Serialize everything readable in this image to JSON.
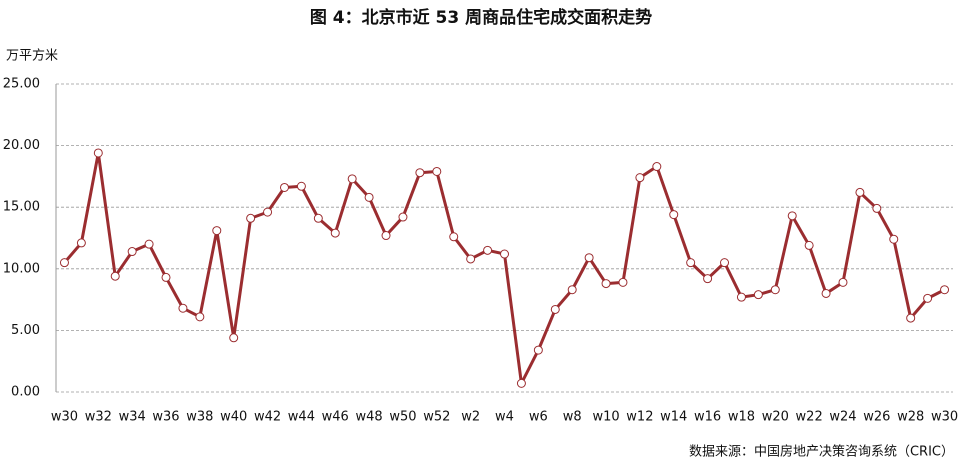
{
  "chart_data": {
    "type": "line",
    "title": "图 4：北京市近 53 周商品住宅成交面积走势",
    "y_axis_label": "万平方米",
    "source": "数据来源：中国房地产决策咨询系统（CRIC）",
    "categories": [
      "w30",
      null,
      "w32",
      null,
      "w34",
      null,
      "w36",
      null,
      "w38",
      null,
      "w40",
      null,
      "w42",
      null,
      "w44",
      null,
      "w46",
      null,
      "w48",
      null,
      "w50",
      null,
      "w52",
      null,
      "w2",
      null,
      "w4",
      null,
      "w6",
      null,
      "w8",
      null,
      "w10",
      null,
      "w12",
      null,
      "w14",
      null,
      "w16",
      null,
      "w18",
      null,
      "w20",
      null,
      "w22",
      null,
      "w24",
      null,
      "w26",
      null,
      "w28",
      null,
      "w30"
    ],
    "series": [
      {
        "color": "#9b2d30",
        "values": [
          10.5,
          12.1,
          19.4,
          9.4,
          11.4,
          12.0,
          9.3,
          6.8,
          6.1,
          13.1,
          4.4,
          14.1,
          14.6,
          16.6,
          16.7,
          14.1,
          12.9,
          17.3,
          15.8,
          12.7,
          14.2,
          17.8,
          17.9,
          12.6,
          10.8,
          11.5,
          11.2,
          0.7,
          3.4,
          6.7,
          8.3,
          10.9,
          8.8,
          8.9,
          17.4,
          18.3,
          14.4,
          10.5,
          9.2,
          10.5,
          7.7,
          7.9,
          8.3,
          14.3,
          11.9,
          8.0,
          8.9,
          16.2,
          14.9,
          12.4,
          6.0,
          7.6,
          8.3
        ]
      }
    ],
    "ylim": [
      0,
      25
    ],
    "yticks": [
      {
        "value": 0,
        "label": "0.00"
      },
      {
        "value": 5,
        "label": "5.00"
      },
      {
        "value": 10,
        "label": "10.00"
      },
      {
        "value": 15,
        "label": "15.00"
      },
      {
        "value": 20,
        "label": "20.00"
      },
      {
        "value": 25,
        "label": "25.00"
      }
    ],
    "grid": true
  }
}
